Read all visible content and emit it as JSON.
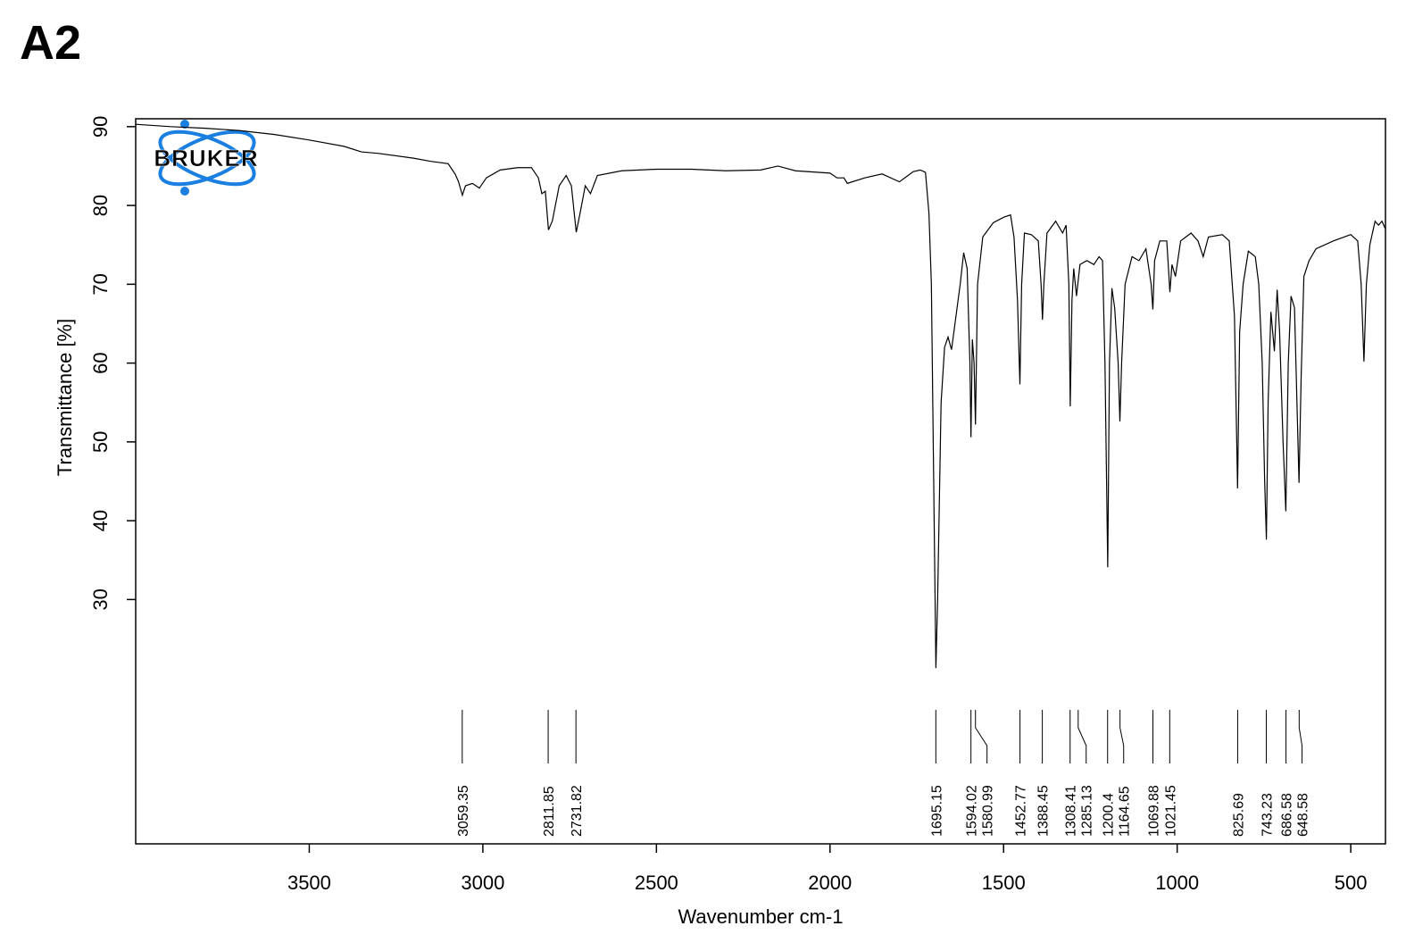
{
  "chart_data": {
    "type": "line",
    "panel_label": "A2",
    "logo": "BRUKER",
    "x_label": "Wavenumber cm-1",
    "y_label": "Transmittance [%]",
    "xlim": [
      4000,
      400
    ],
    "ylim": [
      -1,
      91
    ],
    "xticks": [
      3500,
      3000,
      2500,
      2000,
      1500,
      1000,
      500
    ],
    "yticks": [
      30,
      40,
      50,
      60,
      70,
      80,
      90
    ],
    "series": [
      {
        "color": "#000000",
        "x": [
          4000,
          3900,
          3800,
          3700,
          3600,
          3500,
          3400,
          3350,
          3300,
          3200,
          3150,
          3100,
          3080,
          3070,
          3059,
          3050,
          3030,
          3010,
          2990,
          2950,
          2900,
          2860,
          2840,
          2830,
          2820,
          2811,
          2800,
          2780,
          2760,
          2745,
          2731,
          2720,
          2705,
          2690,
          2670,
          2600,
          2500,
          2400,
          2300,
          2200,
          2150,
          2100,
          2000,
          1980,
          1960,
          1950,
          1900,
          1850,
          1800,
          1760,
          1740,
          1725,
          1715,
          1708,
          1700,
          1695,
          1690,
          1680,
          1670,
          1660,
          1650,
          1640,
          1625,
          1615,
          1605,
          1597,
          1594,
          1590,
          1585,
          1581,
          1575,
          1560,
          1530,
          1500,
          1480,
          1470,
          1460,
          1453,
          1448,
          1440,
          1420,
          1400,
          1392,
          1388,
          1384,
          1375,
          1350,
          1330,
          1320,
          1312,
          1308,
          1303,
          1298,
          1290,
          1280,
          1260,
          1240,
          1225,
          1215,
          1208,
          1200,
          1195,
          1188,
          1180,
          1170,
          1165,
          1160,
          1150,
          1130,
          1110,
          1090,
          1075,
          1070,
          1065,
          1050,
          1030,
          1025,
          1021,
          1015,
          1005,
          990,
          960,
          940,
          925,
          910,
          870,
          850,
          835,
          826,
          820,
          810,
          795,
          775,
          765,
          755,
          748,
          743,
          738,
          730,
          720,
          712,
          705,
          695,
          687,
          680,
          672,
          662,
          655,
          649,
          643,
          635,
          620,
          600,
          550,
          500,
          480,
          470,
          462,
          455,
          445,
          430,
          420,
          410,
          400
        ],
        "values": [
          90.3,
          90,
          89.8,
          89.5,
          89,
          88.3,
          87.5,
          86.8,
          86.6,
          86,
          85.6,
          85.3,
          84,
          83,
          81.3,
          82.5,
          82.8,
          82.2,
          83.5,
          84.5,
          84.8,
          84.8,
          83.5,
          81.5,
          81.8,
          76.9,
          78,
          82.5,
          83.8,
          82.5,
          76.6,
          79,
          82.5,
          81.5,
          83.8,
          84.4,
          84.6,
          84.6,
          84.4,
          84.5,
          85,
          84.4,
          84.1,
          83.5,
          83.5,
          82.8,
          83.5,
          84,
          83,
          84.3,
          84.5,
          84.2,
          79,
          70,
          40,
          21.3,
          30,
          55,
          62,
          63.3,
          61.7,
          65,
          70,
          74,
          72,
          60,
          50.6,
          63,
          60,
          52.2,
          70,
          76,
          77.8,
          78.5,
          78.8,
          76,
          68,
          57.3,
          70,
          76.5,
          76.3,
          75.5,
          70,
          65.5,
          70,
          76.5,
          78,
          76.5,
          77.5,
          70,
          54.5,
          68,
          72,
          68.5,
          72.5,
          73,
          72.5,
          73.5,
          73,
          60,
          34.1,
          60,
          69.5,
          67,
          60,
          52.6,
          60,
          70,
          73.5,
          73,
          74.5,
          70,
          66.8,
          73,
          75.5,
          75.5,
          72,
          69,
          72.5,
          71,
          75.5,
          76.5,
          75.5,
          73.5,
          76,
          76.3,
          75.5,
          66,
          44.1,
          64,
          70,
          74.2,
          73.5,
          70,
          60,
          45,
          37.6,
          55,
          66.5,
          61.5,
          69.3,
          64,
          50,
          41.2,
          60,
          68.5,
          67,
          55,
          44.8,
          58,
          71,
          73,
          74.5,
          75.5,
          76.3,
          75.5,
          70,
          60.2,
          70,
          75,
          78,
          77.5,
          78,
          77
        ]
      }
    ],
    "peaks": [
      3059.35,
      2811.85,
      2731.82,
      1695.15,
      1594.02,
      1580.99,
      1452.77,
      1388.45,
      1308.41,
      1285.13,
      1200.4,
      1164.65,
      1069.88,
      1021.45,
      825.69,
      743.23,
      686.58,
      648.58
    ]
  }
}
